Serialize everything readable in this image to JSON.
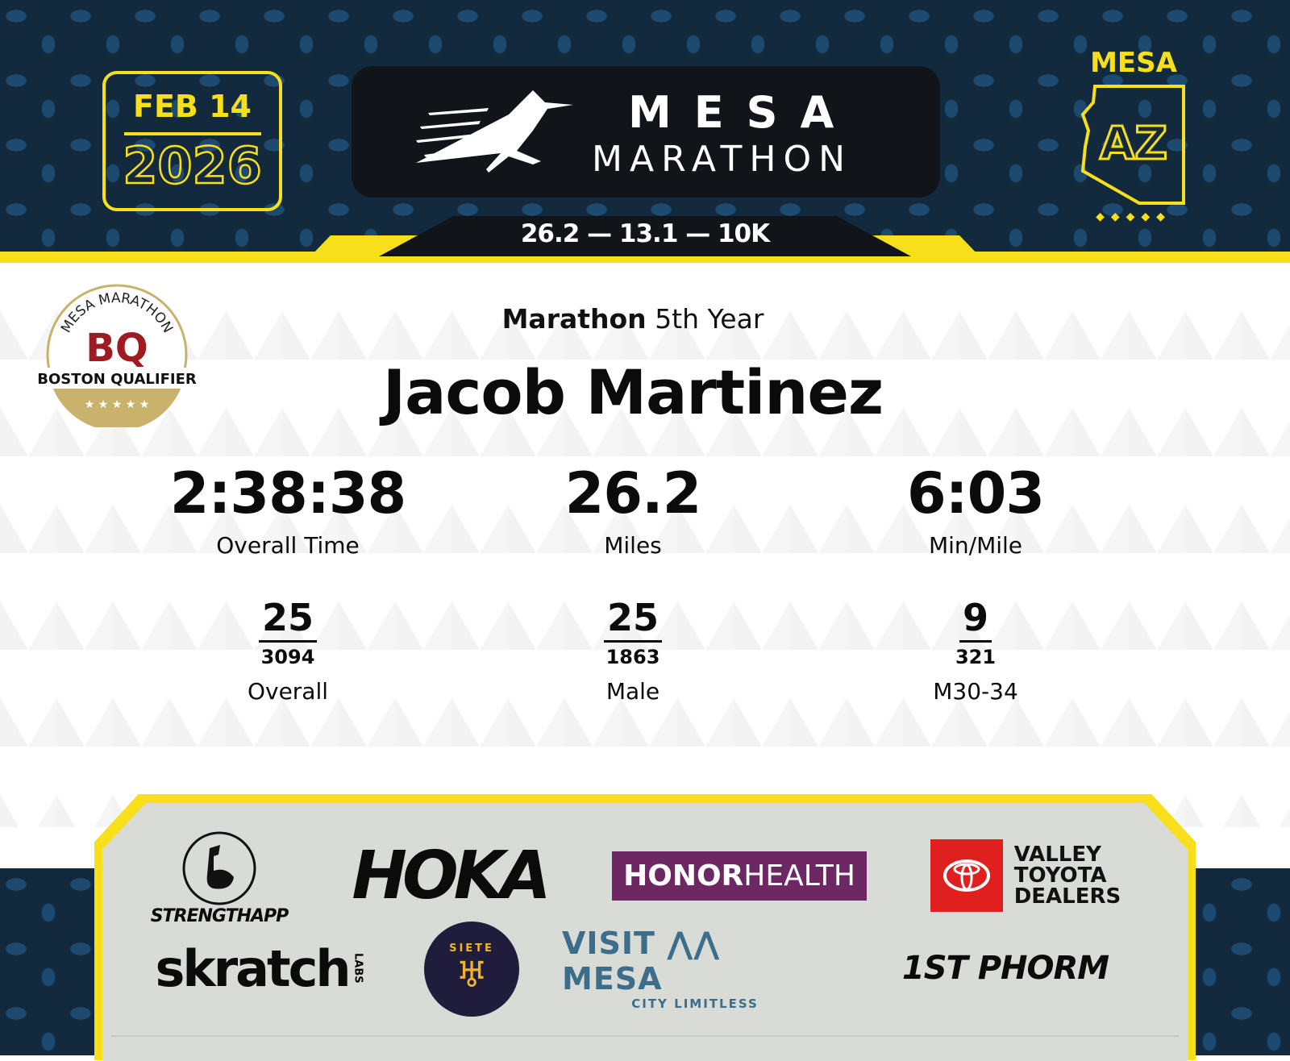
{
  "header": {
    "date": {
      "month_day": "FEB 14",
      "year": "2026"
    },
    "logo": {
      "line1": "MESA",
      "line2": "MARATHON"
    },
    "distances": "26.2 — 13.1 — 10K",
    "state": {
      "city": "MESA",
      "abbr": "AZ"
    }
  },
  "badge": {
    "arc_text": "MESA MARATHON",
    "letters": "BQ",
    "label": "BOSTON QUALIFIER"
  },
  "result": {
    "race": "Marathon",
    "year_text": "5th Year",
    "name": "Jacob Martinez",
    "stats": [
      {
        "value": "2:38:38",
        "label": "Overall Time"
      },
      {
        "value": "26.2",
        "label": "Miles"
      },
      {
        "value": "6:03",
        "label": "Min/Mile"
      }
    ],
    "ranks": [
      {
        "place": "25",
        "total": "3094",
        "category": "Overall"
      },
      {
        "place": "25",
        "total": "1863",
        "category": "Male"
      },
      {
        "place": "9",
        "total": "321",
        "category": "M30-34"
      }
    ]
  },
  "sponsors": {
    "strengthapp": "STRENGTHAPP",
    "hoka": "HOKA",
    "honor_a": "HONOR",
    "honor_b": "HEALTH",
    "toyota": [
      "VALLEY",
      "TOYOTA",
      "DEALERS"
    ],
    "skratch": "skratch",
    "skratch_labs": "LABS",
    "siete": "SIETE",
    "visit_mesa": "VISIT ⋀⋀ MESA",
    "visit_tagline": "CITY LIMITLESS",
    "phorm": "1ST PHORM"
  },
  "colors": {
    "accent_yellow": "#f7e01b",
    "navy": "#13293d",
    "bq_red": "#9e1b22",
    "bq_gold": "#c9b26b"
  }
}
